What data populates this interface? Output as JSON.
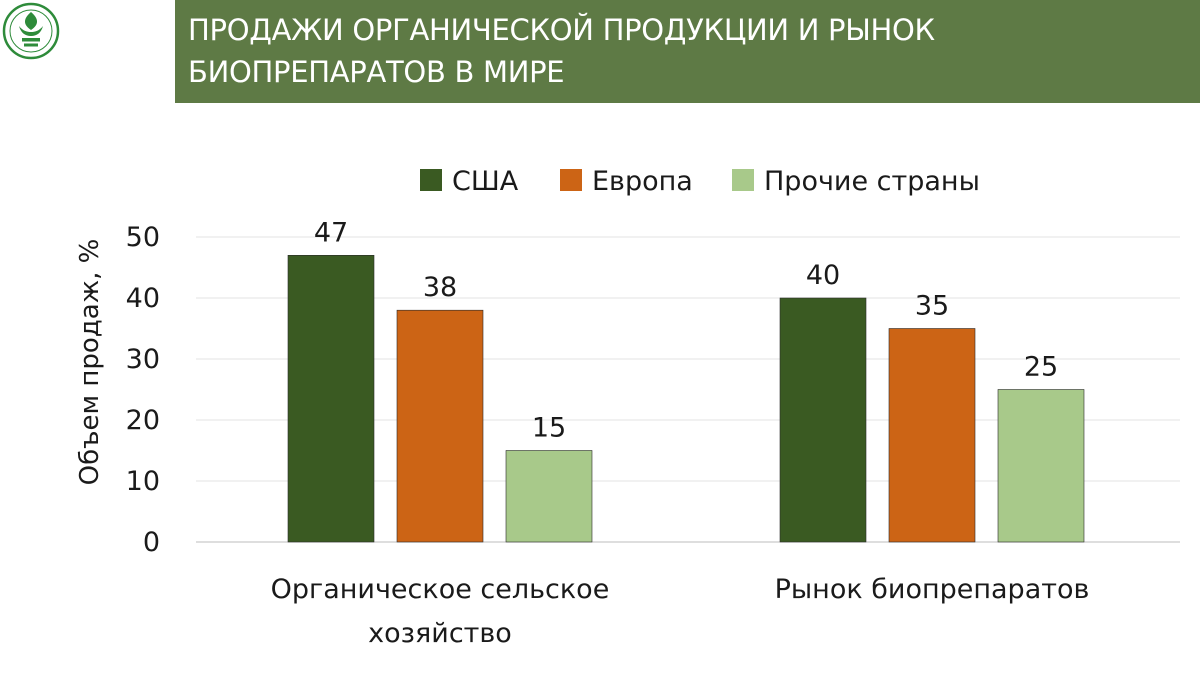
{
  "header": {
    "title": "ПРОДАЖИ ОРГАНИЧЕСКОЙ ПРОДУКЦИИ И РЫНОК\nБИОПРЕПАРАТОВ В МИРЕ"
  },
  "chart_data": {
    "type": "bar",
    "title": "",
    "xlabel": "",
    "ylabel": "Объем продаж, %",
    "ylim": [
      0,
      50
    ],
    "yticks": [
      0,
      10,
      20,
      30,
      40,
      50
    ],
    "grid": true,
    "legend_position": "top",
    "categories": [
      {
        "line1": "Органическое сельское",
        "line2": "хозяйство"
      },
      {
        "line1": "Рынок биопрепаратов",
        "line2": ""
      }
    ],
    "series": [
      {
        "name": "США",
        "color": "#3a5a22",
        "values": [
          47,
          40
        ]
      },
      {
        "name": "Европа",
        "color": "#cc6415",
        "values": [
          38,
          35
        ]
      },
      {
        "name": "Прочие страны",
        "color": "#a8c98a",
        "values": [
          15,
          25
        ]
      }
    ]
  },
  "colors": {
    "title_bar": "#5e7a45",
    "logo_green": "#2e8b3a"
  }
}
